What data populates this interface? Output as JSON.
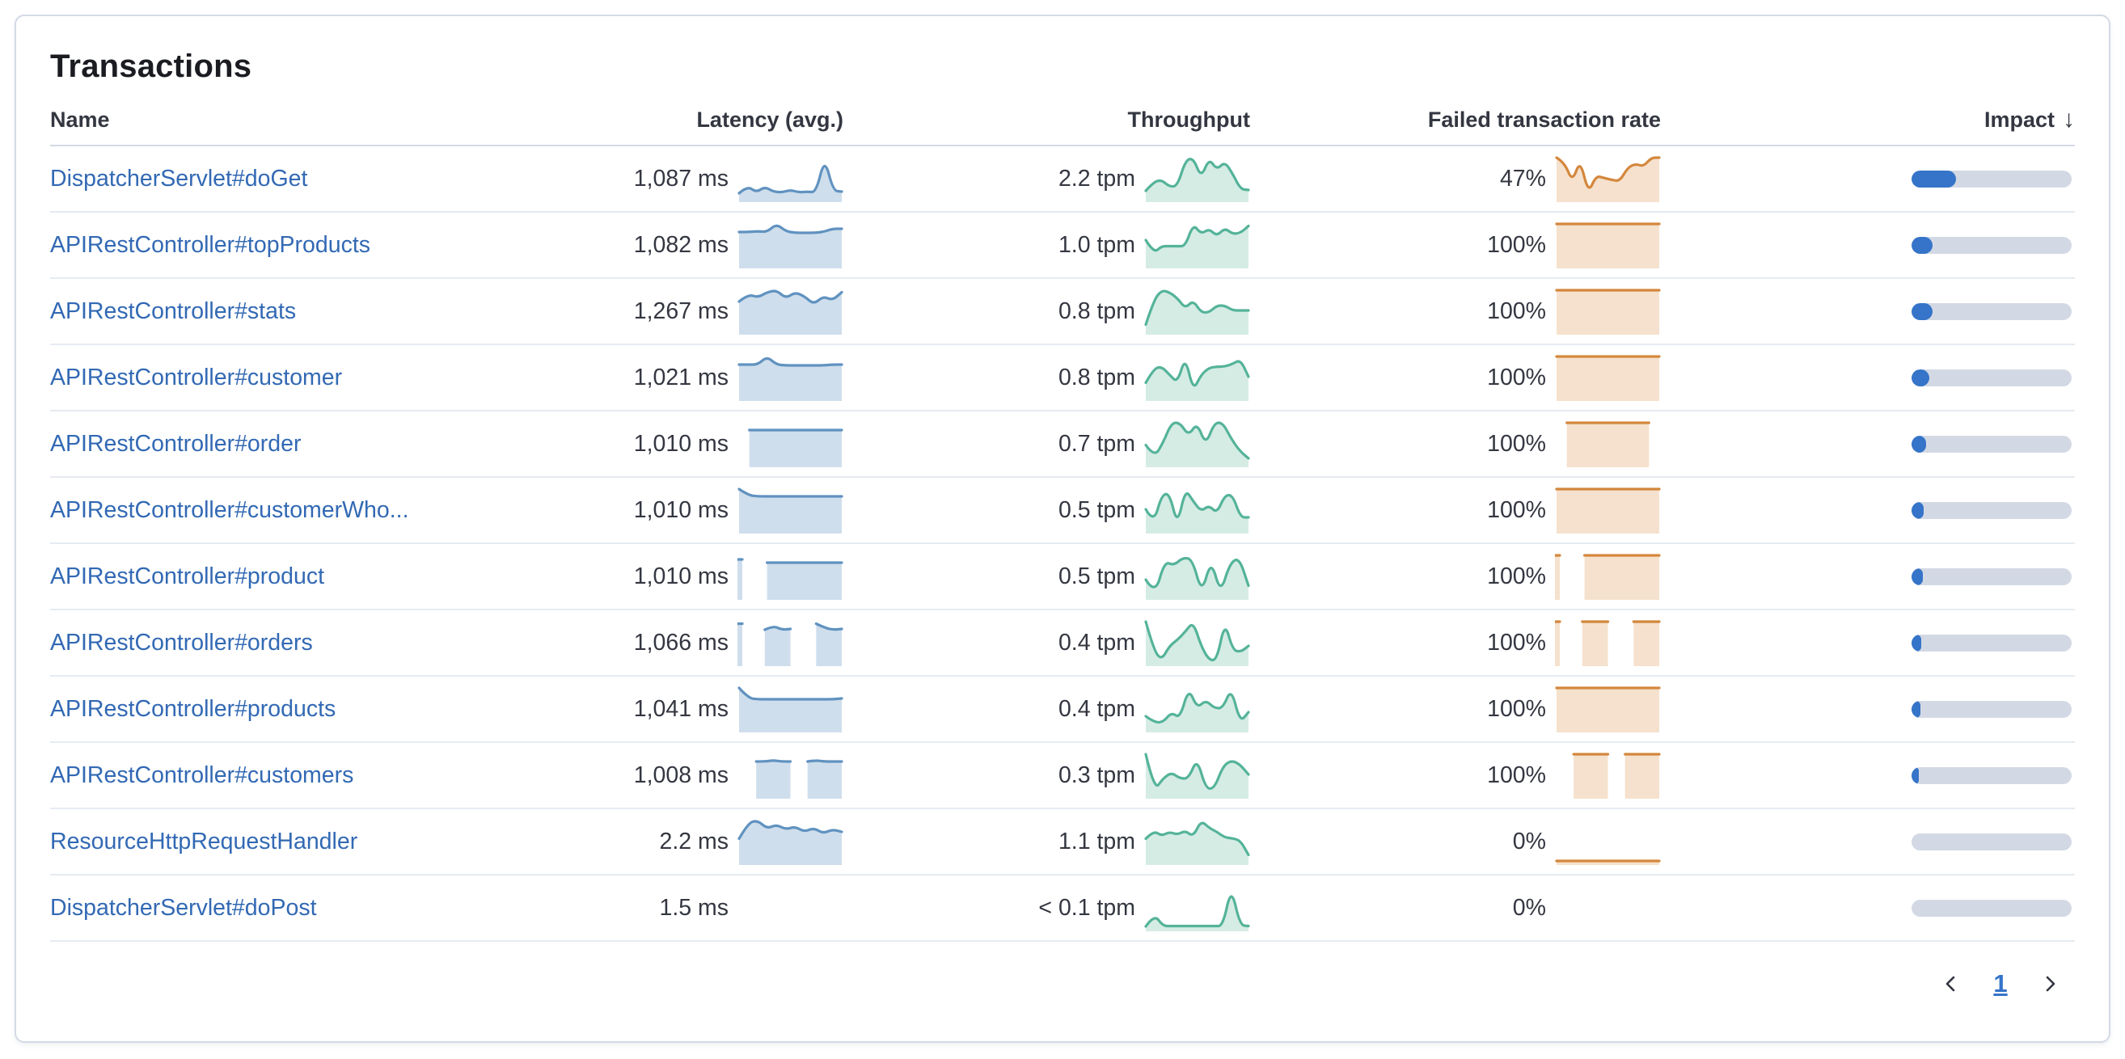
{
  "panel": {
    "title": "Transactions"
  },
  "table": {
    "columns": {
      "name": "Name",
      "latency": "Latency (avg.)",
      "throughput": "Throughput",
      "failed": "Failed transaction rate",
      "impact": "Impact"
    },
    "sort_icon": "↓",
    "sort": {
      "column": "Impact",
      "direction": "desc"
    },
    "rows": [
      {
        "name": "DispatcherServlet#doGet",
        "latency": "1,087 ms",
        "throughput": "2.2 tpm",
        "failed_rate": "47%",
        "impact_pct": 28,
        "latency_spark": [
          0.12,
          0.3,
          0.14,
          0.28,
          0.16,
          0.14,
          0.2,
          0.14,
          0.16,
          0.14,
          1.0,
          0.18,
          0.16
        ],
        "throughput_spark": [
          0.18,
          0.4,
          0.45,
          0.28,
          0.3,
          0.92,
          1.0,
          0.5,
          0.98,
          0.7,
          0.9,
          0.6,
          0.22,
          0.2
        ],
        "failed_spark": [
          1.0,
          0.88,
          0.4,
          0.95,
          0.12,
          0.55,
          0.5,
          0.45,
          0.42,
          0.75,
          0.85,
          0.78,
          1.0,
          1.0
        ]
      },
      {
        "name": "APIRestController#topProducts",
        "latency": "1,082 ms",
        "throughput": "1.0 tpm",
        "failed_rate": "100%",
        "impact_pct": 13,
        "latency_spark": [
          0.8,
          0.8,
          0.82,
          0.8,
          1.0,
          0.82,
          0.78,
          0.78,
          0.78,
          0.8,
          0.88,
          0.88
        ],
        "throughput_spark": [
          0.6,
          0.28,
          0.45,
          0.45,
          0.45,
          0.45,
          1.0,
          0.75,
          0.88,
          0.7,
          0.9,
          0.75,
          0.78,
          0.95
        ],
        "failed_spark": [
          1,
          1,
          1,
          1,
          1,
          1,
          1,
          1,
          1,
          1,
          1,
          1
        ]
      },
      {
        "name": "APIRestController#stats",
        "latency": "1,267 ms",
        "throughput": "0.8 tpm",
        "failed_rate": "100%",
        "impact_pct": 13,
        "latency_spark": [
          0.72,
          0.9,
          0.82,
          0.95,
          1.0,
          0.8,
          0.95,
          0.85,
          0.65,
          0.85,
          0.75,
          0.95
        ],
        "throughput_spark": [
          0.15,
          0.75,
          1.0,
          0.95,
          0.8,
          0.55,
          0.75,
          0.45,
          0.45,
          0.62,
          0.62,
          0.5,
          0.5,
          0.5
        ],
        "failed_spark": [
          1,
          1,
          1,
          1,
          1,
          1,
          1,
          1,
          1,
          1,
          1,
          1
        ]
      },
      {
        "name": "APIRestController#customer",
        "latency": "1,021 ms",
        "throughput": "0.8 tpm",
        "failed_rate": "100%",
        "impact_pct": 11,
        "latency_spark": [
          0.8,
          0.8,
          0.8,
          1.0,
          0.8,
          0.78,
          0.78,
          0.78,
          0.78,
          0.78,
          0.8,
          0.8
        ],
        "throughput_spark": [
          0.35,
          0.7,
          0.75,
          0.55,
          0.35,
          1.0,
          0.15,
          0.55,
          0.72,
          0.75,
          0.75,
          0.82,
          0.92,
          0.5
        ],
        "failed_spark": [
          1,
          1,
          1,
          1,
          1,
          1,
          1,
          1,
          1,
          1,
          1,
          1
        ]
      },
      {
        "name": "APIRestController#order",
        "latency": "1,010 ms",
        "throughput": "0.7 tpm",
        "failed_rate": "100%",
        "impact_pct": 9,
        "latency_spark": [
          null,
          0.82,
          0.82,
          0.82,
          0.82,
          0.82,
          0.82,
          0.82,
          0.82,
          0.82,
          0.82
        ],
        "throughput_spark": [
          0.45,
          0.15,
          0.5,
          1.0,
          1.0,
          0.68,
          1.0,
          0.45,
          1.0,
          1.0,
          0.6,
          0.3,
          0.12
        ],
        "failed_spark": [
          null,
          1,
          1,
          1,
          1,
          1,
          1,
          1,
          1,
          1,
          null
        ]
      },
      {
        "name": "APIRestController#customerWho...",
        "latency": "1,010 ms",
        "throughput": "0.5 tpm",
        "failed_rate": "100%",
        "impact_pct": 7.5,
        "latency_spark": [
          1.0,
          0.85,
          0.82,
          0.82,
          0.82,
          0.82,
          0.82,
          0.82,
          0.82,
          0.82,
          0.82,
          0.82
        ],
        "throughput_spark": [
          0.5,
          0.15,
          0.85,
          0.9,
          0.1,
          1.0,
          0.7,
          0.45,
          0.6,
          0.4,
          0.85,
          0.85,
          0.3,
          0.3
        ],
        "failed_spark": [
          1,
          1,
          1,
          1,
          1,
          1,
          1,
          1,
          1,
          1,
          1,
          1
        ]
      },
      {
        "name": "APIRestController#product",
        "latency": "1,010 ms",
        "throughput": "0.5 tpm",
        "failed_rate": "100%",
        "impact_pct": 7,
        "latency_spark": [
          0.9,
          null,
          null,
          0.82,
          0.82,
          0.82,
          0.82,
          0.82,
          0.82,
          0.82,
          0.82,
          0.82
        ],
        "throughput_spark": [
          0.4,
          0.02,
          0.85,
          0.75,
          0.95,
          0.9,
          0.05,
          0.9,
          0.05,
          0.8,
          0.95,
          0.25
        ],
        "failed_spark": [
          1,
          null,
          null,
          1,
          1,
          1,
          1,
          1,
          1,
          1,
          1,
          1
        ]
      },
      {
        "name": "APIRestController#orders",
        "latency": "1,066 ms",
        "throughput": "0.4 tpm",
        "failed_rate": "100%",
        "impact_pct": 6,
        "latency_spark": [
          0.95,
          null,
          null,
          0.8,
          0.9,
          0.8,
          0.82,
          null,
          null,
          0.95,
          0.85,
          0.8,
          0.82
        ],
        "throughput_spark": [
          1.0,
          0.3,
          0.05,
          0.4,
          0.55,
          0.75,
          1.0,
          0.4,
          0.05,
          0.05,
          1.0,
          0.3,
          0.25,
          0.4
        ],
        "failed_spark": [
          1,
          null,
          null,
          1,
          1,
          1,
          1,
          null,
          null,
          1,
          1,
          1,
          1
        ]
      },
      {
        "name": "APIRestController#products",
        "latency": "1,041 ms",
        "throughput": "0.4 tpm",
        "failed_rate": "100%",
        "impact_pct": 5.5,
        "latency_spark": [
          1.0,
          0.75,
          0.72,
          0.72,
          0.72,
          0.72,
          0.72,
          0.72,
          0.72,
          0.72,
          0.72,
          0.74
        ],
        "throughput_spark": [
          0.3,
          0.15,
          0.15,
          0.4,
          0.25,
          1.0,
          0.5,
          0.7,
          0.5,
          0.5,
          1.0,
          0.15,
          0.4
        ],
        "failed_spark": [
          1,
          1,
          1,
          1,
          1,
          1,
          1,
          1,
          1,
          1,
          1,
          1
        ]
      },
      {
        "name": "APIRestController#customers",
        "latency": "1,008 ms",
        "throughput": "0.3 tpm",
        "failed_rate": "100%",
        "impact_pct": 4.5,
        "latency_spark": [
          null,
          null,
          0.82,
          0.82,
          0.85,
          0.82,
          0.82,
          null,
          0.82,
          0.85,
          0.82,
          0.82,
          0.82
        ],
        "throughput_spark": [
          1.0,
          0.1,
          0.4,
          0.55,
          0.4,
          0.4,
          0.9,
          0.15,
          0.15,
          0.7,
          0.85,
          0.75,
          0.5
        ],
        "failed_spark": [
          null,
          null,
          1,
          1,
          1,
          1,
          1,
          null,
          1,
          1,
          1,
          1,
          1
        ]
      },
      {
        "name": "ResourceHttpRequestHandler",
        "latency": "2.2 ms",
        "throughput": "1.1 tpm",
        "failed_rate": "0%",
        "impact_pct": 0,
        "latency_spark": [
          0.55,
          0.95,
          1.0,
          0.8,
          0.9,
          0.78,
          0.85,
          0.72,
          0.82,
          0.68,
          0.78,
          0.72
        ],
        "throughput_spark": [
          0.55,
          0.75,
          0.62,
          0.72,
          0.65,
          0.75,
          0.6,
          1.0,
          0.82,
          0.72,
          0.58,
          0.56,
          0.5,
          0.15
        ],
        "failed_spark": [
          0,
          0,
          0,
          0,
          0,
          0,
          0,
          0,
          0,
          0
        ]
      },
      {
        "name": "DispatcherServlet#doPost",
        "latency": "1.5 ms",
        "throughput": "< 0.1 tpm",
        "failed_rate": "0%",
        "impact_pct": 0,
        "latency_spark": [],
        "throughput_spark": [
          0.02,
          0.32,
          0.03,
          0.03,
          0.03,
          0.03,
          0.03,
          0.03,
          0.03,
          0.03,
          1.0,
          0.05,
          0.03
        ],
        "failed_spark": []
      }
    ]
  },
  "pagination": {
    "page": "1"
  },
  "colors": {
    "link": "#3269b4",
    "text": "#343741",
    "latency_line": "#6092c0",
    "latency_fill": "#cfdeec",
    "throughput_line": "#54b399",
    "throughput_fill": "#d5ece4",
    "failed_line": "#d4873c",
    "failed_fill": "#f5e1cd",
    "impact_fill": "#3574c9",
    "impact_track": "#d3d9e4",
    "header_border": "#d3dae6",
    "row_border": "#e6ebf2"
  }
}
